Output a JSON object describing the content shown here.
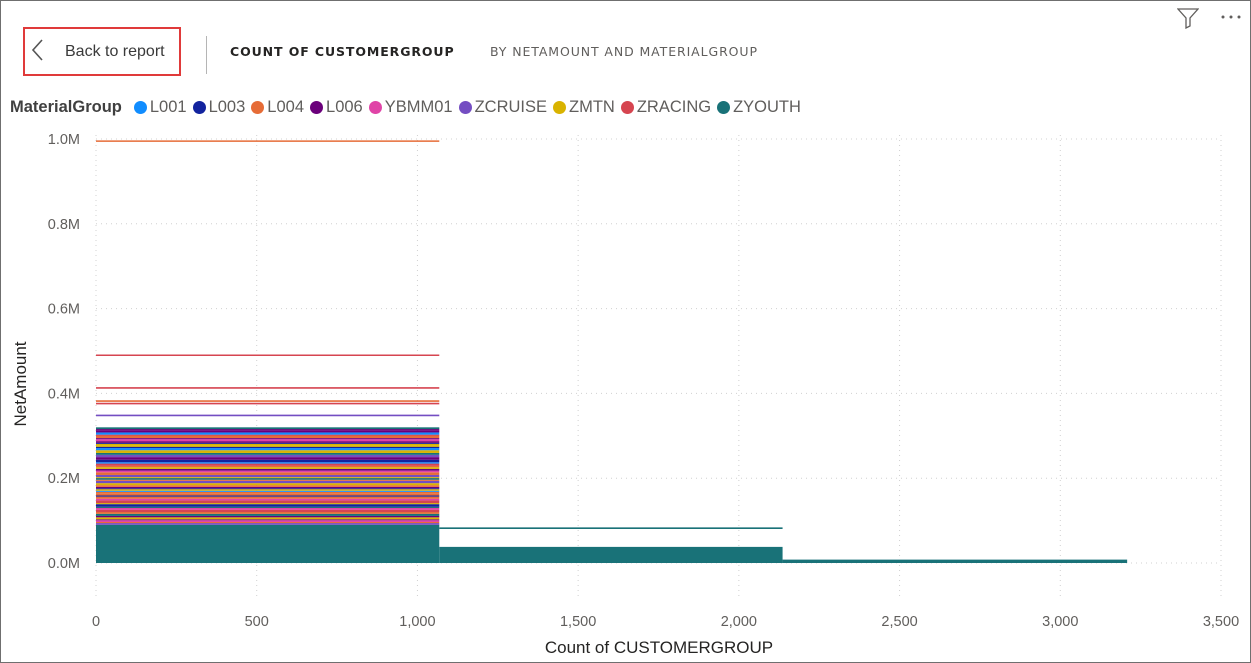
{
  "header": {
    "back_label": "Back to report",
    "breadcrumb_primary": "COUNT OF CUSTOMERGROUP",
    "breadcrumb_secondary": "BY NETAMOUNT AND MATERIALGROUP",
    "icons": [
      "filter-icon",
      "more-options-icon",
      "chevron-left-icon"
    ]
  },
  "legend": {
    "title": "MaterialGroup",
    "items": [
      {
        "label": "L001",
        "color": "#118DFF"
      },
      {
        "label": "L003",
        "color": "#12239E"
      },
      {
        "label": "L004",
        "color": "#E66C37"
      },
      {
        "label": "L006",
        "color": "#6B007B"
      },
      {
        "label": "YBMM01",
        "color": "#E044A7"
      },
      {
        "label": "ZCRUISE",
        "color": "#744EC2"
      },
      {
        "label": "ZMTN",
        "color": "#D9B300"
      },
      {
        "label": "ZRACING",
        "color": "#D64550"
      },
      {
        "label": "ZYOUTH",
        "color": "#197278"
      }
    ]
  },
  "chart_data": {
    "type": "area",
    "title": "",
    "xlabel": "Count of CUSTOMERGROUP",
    "ylabel": "NetAmount",
    "xlim": [
      0,
      3500
    ],
    "ylim": [
      0,
      1000000
    ],
    "x_ticks": [
      0,
      500,
      1000,
      1500,
      2000,
      2500,
      3000,
      3500
    ],
    "x_tick_labels": [
      "0",
      "500",
      "1,000",
      "1,500",
      "2,000",
      "2,500",
      "3,000",
      "3,500"
    ],
    "y_ticks": [
      0,
      200000,
      400000,
      600000,
      800000,
      1000000
    ],
    "y_tick_labels": [
      "0.0M",
      "0.2M",
      "0.4M",
      "0.6M",
      "0.8M",
      "1.0M"
    ],
    "grid": true,
    "legend_position": "top-left",
    "segments": [
      {
        "x_start": 0,
        "x_end": 1068,
        "netamount_max": 995000,
        "netamount_dense_top": 320000
      },
      {
        "x_start": 1068,
        "x_end": 2136,
        "netamount_max": 82000,
        "netamount_dense_top": 38000
      },
      {
        "x_start": 2136,
        "x_end": 3208,
        "netamount_max": 8000,
        "netamount_dense_top": 8000
      }
    ],
    "outlier_lines": [
      {
        "series": "L004",
        "x_start": 0,
        "x_end": 1068,
        "y": 995000
      },
      {
        "series": "ZRACING",
        "x_start": 0,
        "x_end": 1068,
        "y": 490000
      },
      {
        "series": "ZRACING",
        "x_start": 0,
        "x_end": 1068,
        "y": 413000
      },
      {
        "series": "L004",
        "x_start": 0,
        "x_end": 1068,
        "y": 382000
      },
      {
        "series": "ZRACING",
        "x_start": 0,
        "x_end": 1068,
        "y": 376000
      },
      {
        "series": "ZCRUISE",
        "x_start": 0,
        "x_end": 1068,
        "y": 348000
      },
      {
        "series": "ZYOUTH",
        "x_start": 1068,
        "x_end": 2136,
        "y": 82000
      }
    ]
  }
}
